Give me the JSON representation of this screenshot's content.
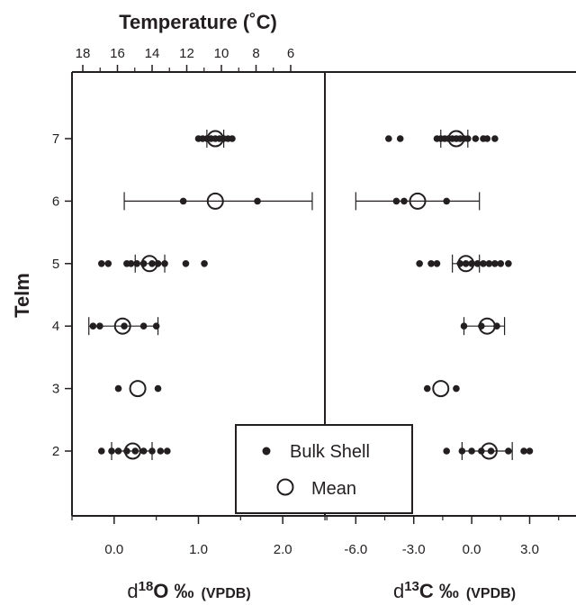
{
  "chart_data": [
    {
      "type": "scatter",
      "panel": "d18O",
      "title": "Temperature (˚C)",
      "top_axis_ticks": [
        "18",
        "16",
        "14",
        "12",
        "10",
        "8",
        "6"
      ],
      "xlabel_prefix": "d",
      "xlabel_sup": "18",
      "xlabel_main": "O ‰",
      "xlabel_unit": "(VPDB)",
      "ylabel": "Telm",
      "xlim": [
        -0.5,
        2.5
      ],
      "xticks": [
        "0.0",
        "1.0",
        "2.0"
      ],
      "y_categories": [
        "2",
        "3",
        "4",
        "5",
        "6",
        "7"
      ],
      "series": [
        {
          "name": "Bulk Shell",
          "points": [
            [
              1.0,
              7
            ],
            [
              1.05,
              7
            ],
            [
              1.1,
              7
            ],
            [
              1.15,
              7
            ],
            [
              1.2,
              7
            ],
            [
              1.25,
              7
            ],
            [
              1.3,
              7
            ],
            [
              1.35,
              7
            ],
            [
              1.4,
              7
            ],
            [
              0.82,
              6
            ],
            [
              1.7,
              6
            ],
            [
              -0.15,
              5
            ],
            [
              -0.07,
              5
            ],
            [
              0.15,
              5
            ],
            [
              0.2,
              5
            ],
            [
              0.27,
              5
            ],
            [
              0.35,
              5
            ],
            [
              0.45,
              5
            ],
            [
              0.52,
              5
            ],
            [
              0.6,
              5
            ],
            [
              0.85,
              5
            ],
            [
              1.07,
              5
            ],
            [
              -0.25,
              4
            ],
            [
              -0.17,
              4
            ],
            [
              0.12,
              4
            ],
            [
              0.35,
              4
            ],
            [
              0.5,
              4
            ],
            [
              0.05,
              3
            ],
            [
              0.52,
              3
            ],
            [
              -0.15,
              2
            ],
            [
              -0.03,
              2
            ],
            [
              0.05,
              2
            ],
            [
              0.15,
              2
            ],
            [
              0.25,
              2
            ],
            [
              0.35,
              2
            ],
            [
              0.45,
              2
            ],
            [
              0.55,
              2
            ],
            [
              0.63,
              2
            ]
          ]
        },
        {
          "name": "Mean",
          "points": [
            [
              1.2,
              7
            ],
            [
              1.2,
              6
            ],
            [
              0.42,
              5
            ],
            [
              0.1,
              4
            ],
            [
              0.28,
              3
            ],
            [
              0.22,
              2
            ]
          ]
        }
      ],
      "error_bars": [
        {
          "y": 7,
          "low": 1.1,
          "high": 1.3
        },
        {
          "y": 6,
          "low": 0.12,
          "high": 2.35
        },
        {
          "y": 5,
          "low": 0.25,
          "high": 0.6
        },
        {
          "y": 4,
          "low": -0.3,
          "high": 0.52
        },
        {
          "y": 2,
          "low": -0.03,
          "high": 0.45
        }
      ]
    },
    {
      "type": "scatter",
      "panel": "d13C",
      "xlabel_prefix": "d",
      "xlabel_sup": "13",
      "xlabel_main": "C ‰",
      "xlabel_unit": "(VPDB)",
      "xlim": [
        -7.6,
        5.4
      ],
      "xticks": [
        "-6.0",
        "-3.0",
        "0.0",
        "3.0"
      ],
      "y_categories": [
        "2",
        "3",
        "4",
        "5",
        "6",
        "7"
      ],
      "series": [
        {
          "name": "Bulk Shell",
          "points": [
            [
              -4.3,
              7
            ],
            [
              -3.7,
              7
            ],
            [
              -1.8,
              7
            ],
            [
              -1.6,
              7
            ],
            [
              -1.4,
              7
            ],
            [
              -1.2,
              7
            ],
            [
              -1.0,
              7
            ],
            [
              -0.8,
              7
            ],
            [
              -0.6,
              7
            ],
            [
              -0.4,
              7
            ],
            [
              -0.2,
              7
            ],
            [
              0.2,
              7
            ],
            [
              0.6,
              7
            ],
            [
              0.8,
              7
            ],
            [
              1.2,
              7
            ],
            [
              -3.9,
              6
            ],
            [
              -3.5,
              6
            ],
            [
              -1.3,
              6
            ],
            [
              -2.7,
              5
            ],
            [
              -2.1,
              5
            ],
            [
              -1.8,
              5
            ],
            [
              -0.6,
              5
            ],
            [
              -0.3,
              5
            ],
            [
              0.0,
              5
            ],
            [
              0.3,
              5
            ],
            [
              0.6,
              5
            ],
            [
              0.9,
              5
            ],
            [
              1.2,
              5
            ],
            [
              1.5,
              5
            ],
            [
              1.9,
              5
            ],
            [
              -0.4,
              4
            ],
            [
              0.5,
              4
            ],
            [
              1.3,
              4
            ],
            [
              -2.3,
              3
            ],
            [
              -0.8,
              3
            ],
            [
              -1.3,
              2
            ],
            [
              -0.5,
              2
            ],
            [
              0.0,
              2
            ],
            [
              0.5,
              2
            ],
            [
              1.0,
              2
            ],
            [
              1.9,
              2
            ],
            [
              2.7,
              2
            ],
            [
              3.0,
              2
            ]
          ]
        },
        {
          "name": "Mean",
          "points": [
            [
              -0.8,
              7
            ],
            [
              -2.8,
              6
            ],
            [
              -0.3,
              5
            ],
            [
              0.8,
              4
            ],
            [
              -1.6,
              3
            ],
            [
              0.9,
              2
            ]
          ]
        }
      ],
      "error_bars": [
        {
          "y": 7,
          "low": -1.6,
          "high": -0.2
        },
        {
          "y": 6,
          "low": -6.0,
          "high": 0.4
        },
        {
          "y": 5,
          "low": -1.0,
          "high": 0.4
        },
        {
          "y": 4,
          "low": -0.4,
          "high": 1.7
        },
        {
          "y": 2,
          "low": -0.5,
          "high": 2.1
        }
      ]
    }
  ],
  "legend": {
    "placement": "bottom-center",
    "items": [
      {
        "label": "Bulk Shell",
        "marker": "filled-dot"
      },
      {
        "label": "Mean",
        "marker": "open-circle"
      }
    ]
  }
}
